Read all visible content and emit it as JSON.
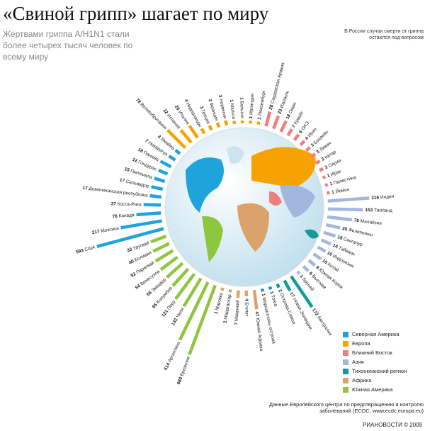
{
  "chart_data": {
    "type": "radial_bar",
    "title": "«Свиной грипп» шагает по миру",
    "subtitle": "Жертвами гриппа A/H1N1 стали более четырех тысяч человек по всему миру",
    "note": "В России случаи смерти от гриппа остаются под вопросом",
    "source": "Данные Европейского центра по предотвращению и контролю заболеваний (ECDC, www.ecdc.europa.eu)",
    "credit": "РИАНОВОСТИ © 2009",
    "series": [
      {
        "name": "Северная Америка",
        "color": "#1fa3dc",
        "categories": [
          "США",
          "Мексика",
          "Канада",
          "Коста-Рика",
          "Доминиканская республика",
          "Сальвадор",
          "Гватемала",
          "Гондурас",
          "Панама",
          "Никарагуа",
          "Ямайка"
        ],
        "values": [
          593,
          217,
          76,
          37,
          17,
          17,
          15,
          12,
          18,
          7,
          4
        ]
      },
      {
        "name": "Европа",
        "color": "#f6a200",
        "categories": [
          "Великобритания",
          "Испания",
          "Италия",
          "Нидерланды",
          "Греция",
          "Франция",
          "Норвегия",
          "Мальта",
          "Бельгия",
          "Ирландия",
          "Люксембург"
        ],
        "values": [
          78,
          32,
          26,
          4,
          3,
          3,
          3,
          1,
          1,
          1,
          1
        ]
      },
      {
        "name": "Ближний Восток",
        "color": "#ef7f7f",
        "categories": [
          "Саудовская Аравия",
          "Израиль",
          "Оман",
          "Кувейт",
          "ОАЭ",
          "Иран",
          "Бахрейн",
          "Ливан",
          "Катар",
          "Сирия",
          "Ирак",
          "Палестина",
          "Йемен"
        ],
        "values": [
          28,
          23,
          18,
          7,
          6,
          4,
          3,
          3,
          3,
          2,
          1,
          1,
          1
        ]
      },
      {
        "name": "Азия",
        "color": "#a3b6e0",
        "categories": [
          "Индия",
          "Таиланд",
          "Малайзия",
          "Филиппины",
          "Сингапур",
          "Тайвань",
          "Индонезия",
          "Китай",
          "Южная Корея",
          "Вьетнам",
          "Бруней"
        ],
        "values": [
          216,
          153,
          76,
          26,
          18,
          14,
          10,
          10,
          8,
          6,
          1
        ]
      },
      {
        "name": "Тихоокеанский регион",
        "color": "#139a9b",
        "categories": [
          "Австралия",
          "Новая Зеландия",
          "Острова Самоа",
          "Тонга",
          "Маршалловы острова"
        ],
        "values": [
          172,
          17,
          2,
          1,
          1
        ]
      },
      {
        "name": "Африка",
        "color": "#d9a36a",
        "categories": [
          "Южная Африка",
          "Египет",
          "Маврикий",
          "Мадагаскар",
          "Марокко"
        ],
        "values": [
          47,
          4,
          7,
          1,
          1
        ]
      },
      {
        "name": "Южная Америка",
        "color": "#8dc63f",
        "categories": [
          "Бразилия",
          "Аргентина",
          "Чили",
          "Перу",
          "Колумбия",
          "Эквадор",
          "Венесуэла",
          "Парагвай",
          "Боливия",
          "Уругвай"
        ],
        "values": [
          680,
          514,
          132,
          121,
          65,
          55,
          54,
          52,
          40,
          33
        ]
      }
    ]
  }
}
